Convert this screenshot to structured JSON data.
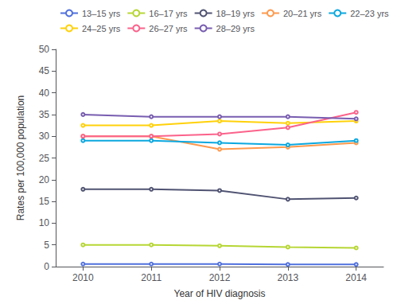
{
  "chart_data": {
    "type": "line",
    "x": [
      2010,
      2011,
      2012,
      2013,
      2014
    ],
    "series": [
      {
        "name": "13–15 yrs",
        "values": [
          0.6,
          0.6,
          0.6,
          0.5,
          0.5
        ]
      },
      {
        "name": "16–17 yrs",
        "values": [
          5.0,
          5.0,
          4.8,
          4.5,
          4.3
        ]
      },
      {
        "name": "18–19 yrs",
        "values": [
          17.8,
          17.8,
          17.5,
          15.5,
          15.8
        ]
      },
      {
        "name": "20–21 yrs",
        "values": [
          30.0,
          30.0,
          27.0,
          27.5,
          28.5
        ]
      },
      {
        "name": "22–23 yrs",
        "values": [
          29.0,
          29.0,
          28.5,
          28.0,
          29.0
        ]
      },
      {
        "name": "24–25 yrs",
        "values": [
          32.5,
          32.5,
          33.5,
          33.0,
          33.5
        ]
      },
      {
        "name": "26–27 yrs",
        "values": [
          30.0,
          30.0,
          30.5,
          32.0,
          35.5
        ]
      },
      {
        "name": "28–29 yrs",
        "values": [
          35.0,
          34.5,
          34.5,
          34.5,
          34.0
        ]
      }
    ],
    "xlabel": "Year of HIV diagnosis",
    "ylabel": "Rates per 100,000 population",
    "xlim": [
      2009.6,
      2014.4
    ],
    "xticks": [
      2010,
      2011,
      2012,
      2013,
      2014
    ],
    "ylim": [
      0,
      50
    ],
    "yticks": [
      0,
      5,
      10,
      15,
      20,
      25,
      30,
      35,
      40,
      45,
      50
    ],
    "grid": false,
    "legend": "upper left"
  }
}
